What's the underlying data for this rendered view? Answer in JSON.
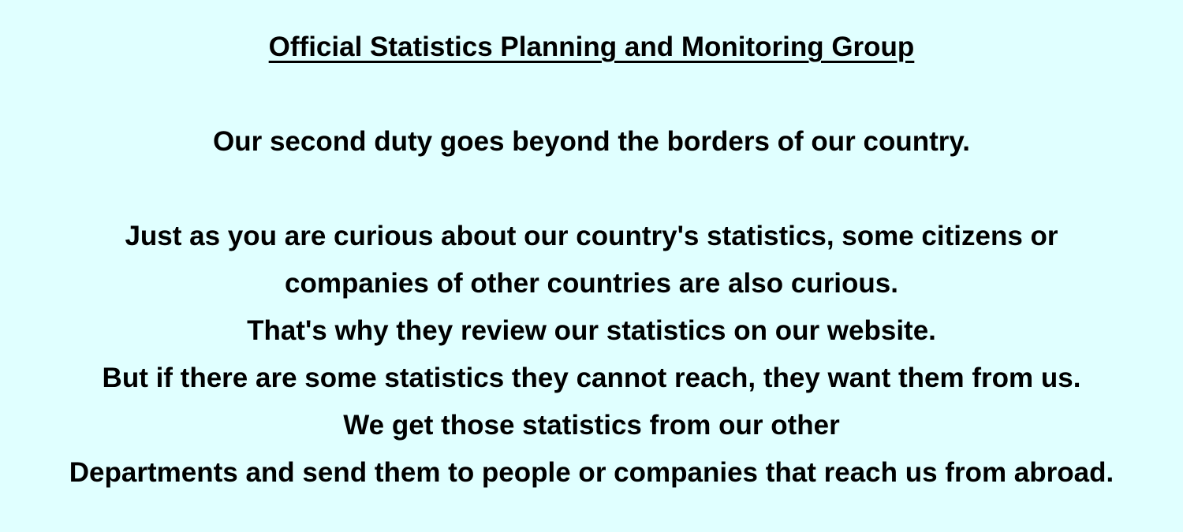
{
  "heading": "Official Statistics Planning and Monitoring Group",
  "intro": "Our second duty goes beyond the borders of our country.",
  "lines": [
    "Just as you are curious about our country's statistics, some citizens or",
    "companies of other countries are also curious.",
    "That's why they review our statistics on our website.",
    "But if there are some statistics they cannot reach, they want them from us.",
    "We get those statistics from our other",
    "Departments and send them to people or companies that reach us from abroad."
  ],
  "colors": {
    "background": "#e0ffff",
    "text": "#000000"
  }
}
